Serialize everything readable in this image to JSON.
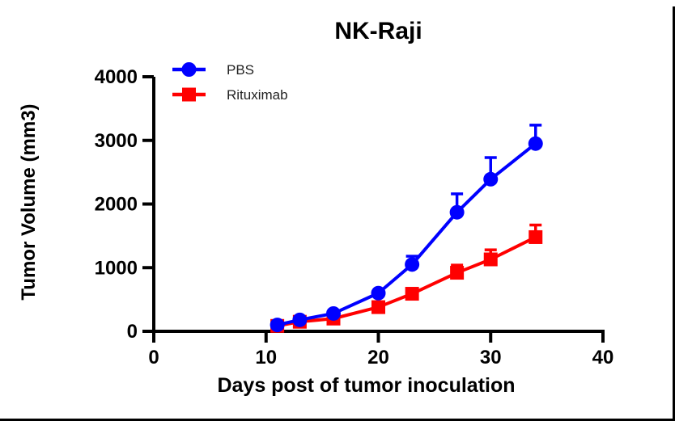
{
  "chart_data": {
    "type": "line",
    "title": "NK-Raji",
    "xlabel": "Days post of tumor inoculation",
    "ylabel": "Tumor Volume (mm3)",
    "xlim": [
      0,
      40
    ],
    "ylim": [
      0,
      4000
    ],
    "x_ticks": [
      0,
      10,
      20,
      30,
      40
    ],
    "y_ticks": [
      0,
      1000,
      2000,
      3000,
      4000
    ],
    "grid": false,
    "legend_position": "top-left-inside",
    "error_bars": "upper-only",
    "axis_color": "#000000",
    "series": [
      {
        "name": "PBS",
        "color": "#0000FF",
        "marker": "circle",
        "x": [
          11,
          13,
          16,
          20,
          23,
          27,
          30,
          34
        ],
        "y": [
          100,
          180,
          280,
          600,
          1050,
          1870,
          2390,
          2950
        ],
        "err_upper": [
          0,
          0,
          0,
          0,
          130,
          290,
          340,
          290
        ]
      },
      {
        "name": "Rituximab",
        "color": "#FF0000",
        "marker": "square",
        "x": [
          11,
          13,
          16,
          20,
          23,
          27,
          30,
          34
        ],
        "y": [
          85,
          150,
          200,
          380,
          590,
          920,
          1130,
          1480
        ],
        "err_upper": [
          0,
          0,
          0,
          0,
          0,
          120,
          150,
          190
        ]
      }
    ]
  }
}
